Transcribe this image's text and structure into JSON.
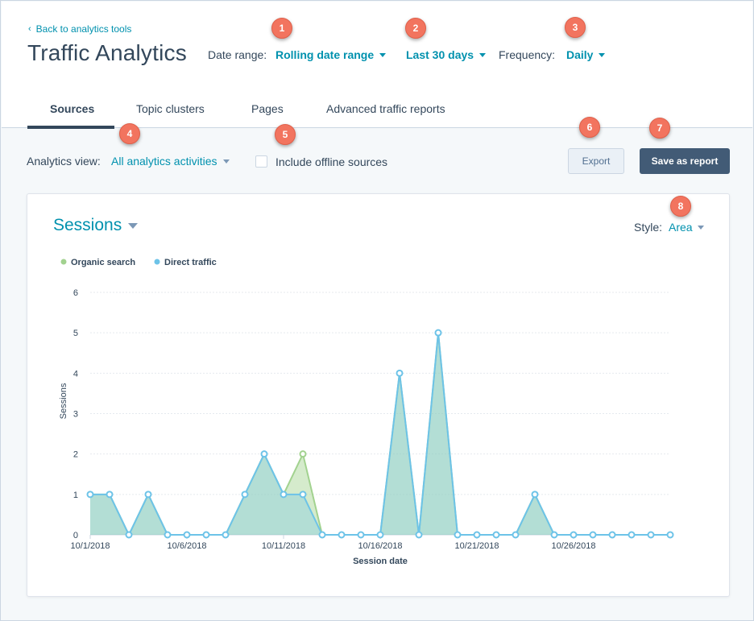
{
  "header": {
    "back_link": "Back to analytics tools",
    "title": "Traffic Analytics",
    "date_range_label": "Date range:",
    "date_range_value": "Rolling date range",
    "period_value": "Last 30 days",
    "frequency_label": "Frequency:",
    "frequency_value": "Daily"
  },
  "tabs": [
    {
      "label": "Sources",
      "active": true
    },
    {
      "label": "Topic clusters",
      "active": false
    },
    {
      "label": "Pages",
      "active": false
    },
    {
      "label": "Advanced traffic reports",
      "active": false
    }
  ],
  "toolbar": {
    "analytics_view_label": "Analytics view:",
    "analytics_view_value": "All analytics activities",
    "include_offline_label": "Include offline sources",
    "include_offline_checked": false,
    "export_label": "Export",
    "save_label": "Save as report"
  },
  "chart_panel": {
    "title": "Sessions",
    "style_label": "Style:",
    "style_value": "Area"
  },
  "badges": [
    "1",
    "2",
    "3",
    "4",
    "5",
    "6",
    "7",
    "8"
  ],
  "colors": {
    "accent": "#0091ae",
    "badge": "#f2745f",
    "organic": "#a2d28f",
    "direct": "#6dc3e8"
  },
  "chart_data": {
    "type": "area",
    "title": "",
    "xlabel": "Session date",
    "ylabel": "Sessions",
    "ylim": [
      0,
      6
    ],
    "yticks": [
      "0",
      "1",
      "2",
      "3",
      "4",
      "5",
      "6"
    ],
    "x": [
      "10/1/2018",
      "10/2/2018",
      "10/3/2018",
      "10/4/2018",
      "10/5/2018",
      "10/6/2018",
      "10/7/2018",
      "10/8/2018",
      "10/9/2018",
      "10/10/2018",
      "10/11/2018",
      "10/12/2018",
      "10/13/2018",
      "10/14/2018",
      "10/15/2018",
      "10/16/2018",
      "10/17/2018",
      "10/18/2018",
      "10/19/2018",
      "10/20/2018",
      "10/21/2018",
      "10/22/2018",
      "10/23/2018",
      "10/24/2018",
      "10/25/2018",
      "10/26/2018",
      "10/27/2018",
      "10/28/2018",
      "10/29/2018",
      "10/30/2018",
      "10/31/2018"
    ],
    "xtick_labels": [
      "10/1/2018",
      "10/6/2018",
      "10/11/2018",
      "10/16/2018",
      "10/21/2018",
      "10/26/2018"
    ],
    "legend_position": "top-left",
    "grid": true,
    "series": [
      {
        "name": "Organic search",
        "values": [
          0,
          0,
          0,
          0,
          0,
          0,
          0,
          0,
          0,
          0,
          0,
          1,
          0,
          0,
          0,
          0,
          0,
          0,
          0,
          0,
          0,
          0,
          0,
          0,
          0,
          0,
          0,
          0,
          0,
          0,
          0
        ]
      },
      {
        "name": "Direct traffic",
        "values": [
          1,
          1,
          0,
          1,
          0,
          0,
          0,
          0,
          1,
          2,
          1,
          1,
          0,
          0,
          0,
          0,
          4,
          0,
          5,
          0,
          0,
          0,
          0,
          1,
          0,
          0,
          0,
          0,
          0,
          0,
          0
        ]
      }
    ]
  }
}
